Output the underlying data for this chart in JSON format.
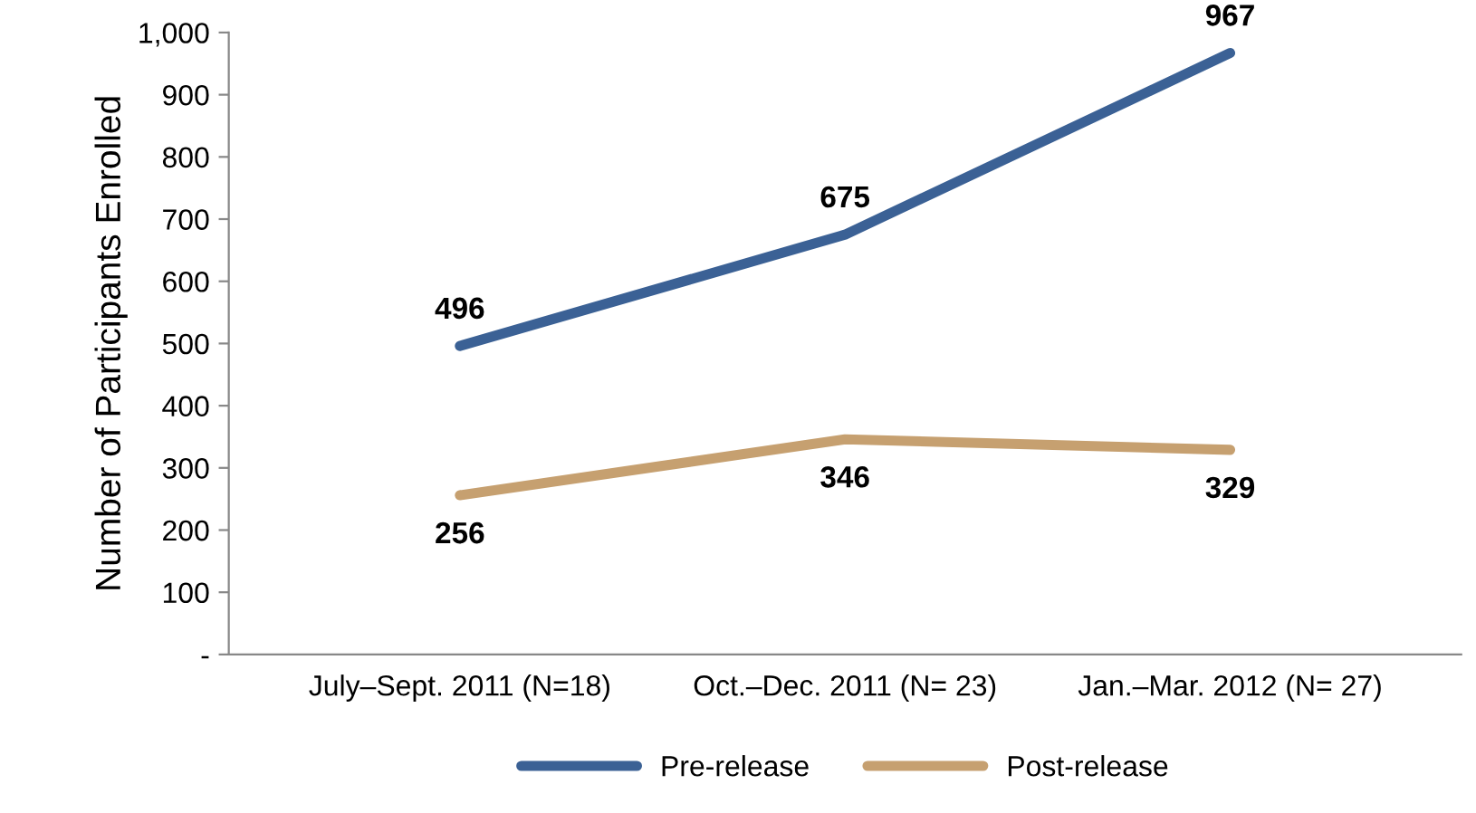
{
  "chart_data": {
    "type": "line",
    "ylabel": "Number of Participants Enrolled",
    "categories": [
      "July–Sept. 2011 (N=18)",
      "Oct.–Dec. 2011 (N= 23)",
      "Jan.–Mar. 2012 (N= 27)"
    ],
    "series": [
      {
        "name": "Pre-release",
        "color": "#3b6195",
        "values": [
          496,
          675,
          967
        ]
      },
      {
        "name": "Post-release",
        "color": "#c6a070",
        "values": [
          256,
          346,
          329
        ]
      }
    ],
    "ylim": [
      0,
      1000
    ],
    "yticks": [
      {
        "value": 0,
        "label": "-"
      },
      100,
      200,
      300,
      400,
      500,
      600,
      700,
      800,
      900,
      {
        "value": 1000,
        "label": "1,000"
      }
    ],
    "data_labels": true,
    "legend": "bottom",
    "grid": false,
    "marker": "none",
    "line_style": "solid"
  }
}
